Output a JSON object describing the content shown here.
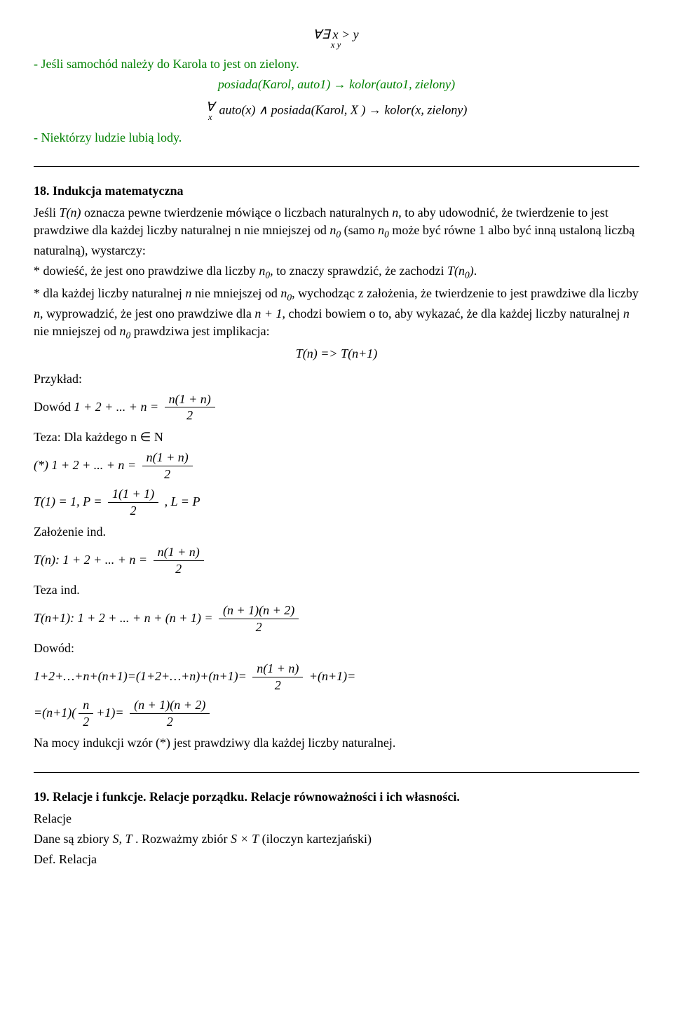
{
  "colors": {
    "accent_green": "#008000",
    "text": "#000000",
    "background": "#ffffff"
  },
  "top_formula_main": "∀∃ x > y",
  "top_formula_sub": "x   y",
  "line_car_green": "- Jeśli samochód należy do Karola to jest on zielony.",
  "posiada_line_green": "posiada(Karol, auto1) → kolor(auto1, zielony)",
  "formal_quant_main": "∀",
  "formal_quant_sub": "x",
  "formal_body": "auto(x) ∧ posiada(Karol, X ) → kolor(x, zielony)",
  "line_lody_green": "- Niektórzy ludzie lubią lody.",
  "sec18_title": "18. Indukcja matematyczna",
  "induction_intro": "Jeśli T(n) oznacza pewne twierdzenie mówiące o liczbach naturalnych n, to aby udowodnić, że twierdzenie to jest prawdziwe dla każdej liczby naturalnej n nie mniejszej od n₀ (samo n₀ może być równe 1 albo być inną ustaloną liczbą naturalną), wystarczy:",
  "induction_point1": "* dowieść, że jest ono prawdziwe dla liczby n₀, to znaczy sprawdzić, że zachodzi T(n₀).",
  "induction_point2": "* dla każdej liczby naturalnej n nie mniejszej od n₀, wychodząc z założenia, że twierdzenie to jest prawdziwe dla liczby n, wyprowadzić, że jest ono prawdziwe dla n + 1, chodzi bowiem o to, aby wykazać, że dla każdej liczby naturalnej n nie mniejszej od n₀ prawdziwa jest implikacja:",
  "implication_line": "T(n) => T(n+1)",
  "lbl_przyklad": "Przykład:",
  "dowod_label": "Dowód",
  "sum_lhs": "1 + 2 + ... + n =",
  "frac_num_n1n": "n(1 + n)",
  "frac_den_2": "2",
  "teza_line": "Teza: Dla każdego n ∈ N",
  "star_line_lhs": "(*) 1 + 2 + ... + n =",
  "t1_prefix": "T(1) = 1,  P =",
  "frac_num_111": "1(1 + 1)",
  "t1_suffix": ",  L = P",
  "zal_ind": "Założenie ind.",
  "tn_prefix": "T(n): 1 + 2 + ... + n =",
  "teza_ind": "Teza ind.",
  "tn1_prefix": "T(n+1): 1 + 2 + ... + n + (n + 1) =",
  "frac_num_n1n2": "(n + 1)(n + 2)",
  "dowod_lbl": "Dowód:",
  "dowod_eq1_lhs": "1+2+…+n+(n+1)=(1+2+…+n)+(n+1)=",
  "dowod_eq1_tail": "+(n+1)=",
  "dowod_eq2_pre": "=(n+1)(",
  "frac_num_n": "n",
  "dowod_eq2_mid": "+1)=",
  "conclusion": "Na mocy indukcji wzór (*) jest prawdziwy dla każdej liczby naturalnej.",
  "sec19_title": "19. Relacje i funkcje. Relacje porządku. Relacje równoważności i ich własności.",
  "relacje_lbl": "Relacje",
  "dane_line_pre": "Dane są zbiory ",
  "dane_line_sets": "S, T",
  "dane_line_mid": " . Rozważmy zbiór ",
  "dane_line_prod": "S × T",
  "dane_line_post": "  (iloczyn kartezjański)",
  "def_relacja": "Def. Relacja"
}
